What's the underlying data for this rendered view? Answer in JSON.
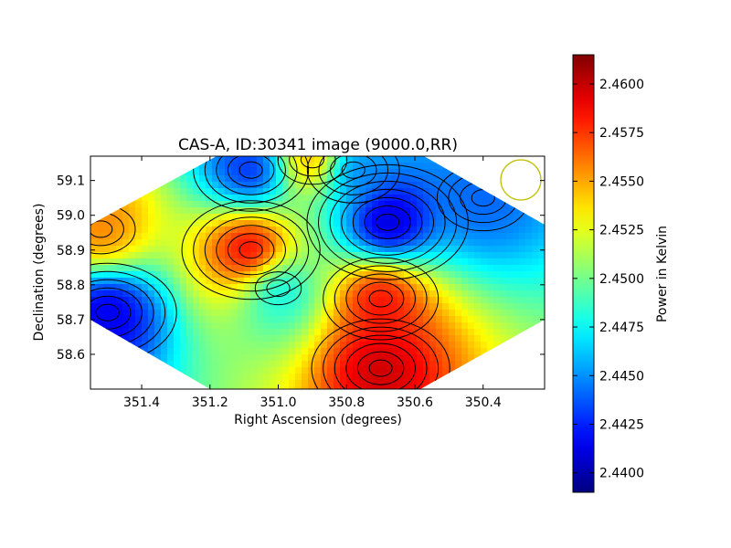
{
  "chart_data": {
    "type": "heatmap",
    "title": "CAS-A, ID:30341 image (9000.0,RR)",
    "xlabel": "Right Ascension (degrees)",
    "ylabel": "Declination (degrees)",
    "xlim": [
      351.55,
      350.22
    ],
    "ylim": [
      58.5,
      59.17
    ],
    "xticks": [
      "351.4",
      "351.2",
      "351.0",
      "350.8",
      "350.6",
      "350.4"
    ],
    "yticks": [
      "58.6",
      "58.7",
      "58.8",
      "58.9",
      "59.0",
      "59.1"
    ],
    "grid": false,
    "legend": "none",
    "colormap": "jet",
    "colorbar": {
      "label": "Power in Kelvin",
      "range": [
        2.439,
        2.4615
      ],
      "ticks": [
        "2.4400",
        "2.4425",
        "2.4450",
        "2.4475",
        "2.4500",
        "2.4525",
        "2.4550",
        "2.4575",
        "2.4600"
      ]
    },
    "contour_color": "#000000",
    "beam_circle_color": "#bfbf00",
    "features": [
      {
        "ra": 350.68,
        "dec": 58.98,
        "value": 2.44
      },
      {
        "ra": 350.78,
        "dec": 59.13,
        "value": 2.444
      },
      {
        "ra": 351.08,
        "dec": 59.13,
        "value": 2.442
      },
      {
        "ra": 351.5,
        "dec": 58.72,
        "value": 2.441
      },
      {
        "ra": 351.0,
        "dec": 58.79,
        "value": 2.447
      },
      {
        "ra": 351.08,
        "dec": 58.9,
        "value": 2.46
      },
      {
        "ra": 350.7,
        "dec": 58.76,
        "value": 2.459
      },
      {
        "ra": 350.7,
        "dec": 58.56,
        "value": 2.46
      },
      {
        "ra": 351.52,
        "dec": 58.96,
        "value": 2.456
      },
      {
        "ra": 350.9,
        "dec": 59.16,
        "value": 2.456
      },
      {
        "ra": 350.4,
        "dec": 59.05,
        "value": 2.444
      }
    ]
  }
}
